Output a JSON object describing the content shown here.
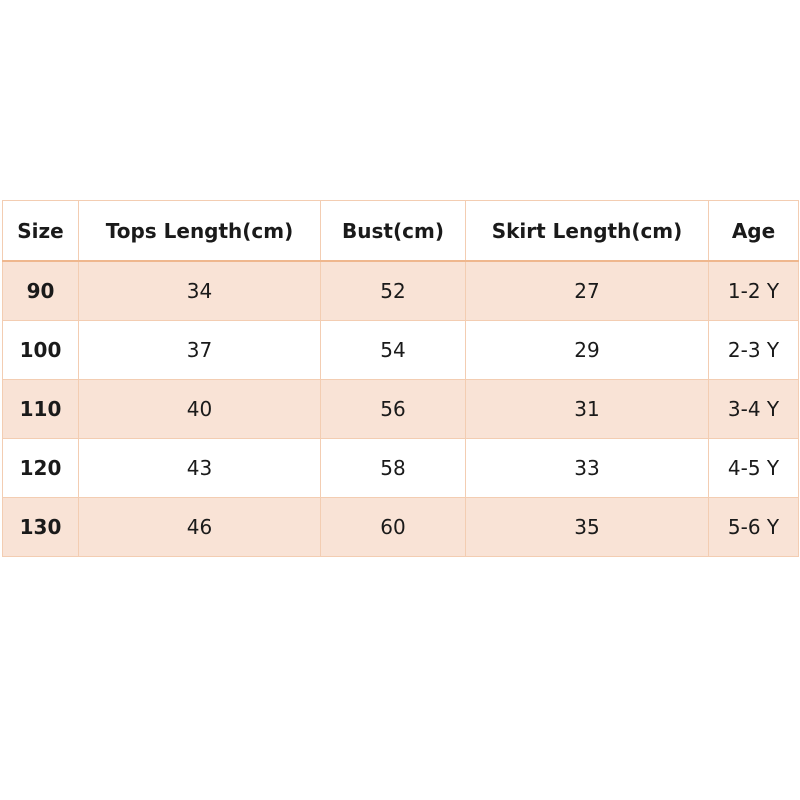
{
  "table": {
    "header": [
      "Size",
      "Tops Length(cm)",
      "Bust(cm)",
      "Skirt Length(cm)",
      "Age"
    ],
    "rows": [
      [
        90,
        34,
        52,
        27,
        "1-2 Y"
      ],
      [
        100,
        37,
        54,
        29,
        "2-3 Y"
      ],
      [
        110,
        40,
        56,
        31,
        "3-4 Y"
      ],
      [
        120,
        43,
        58,
        33,
        "4-5 Y"
      ],
      [
        130,
        46,
        60,
        35,
        "5-6 Y"
      ]
    ]
  }
}
